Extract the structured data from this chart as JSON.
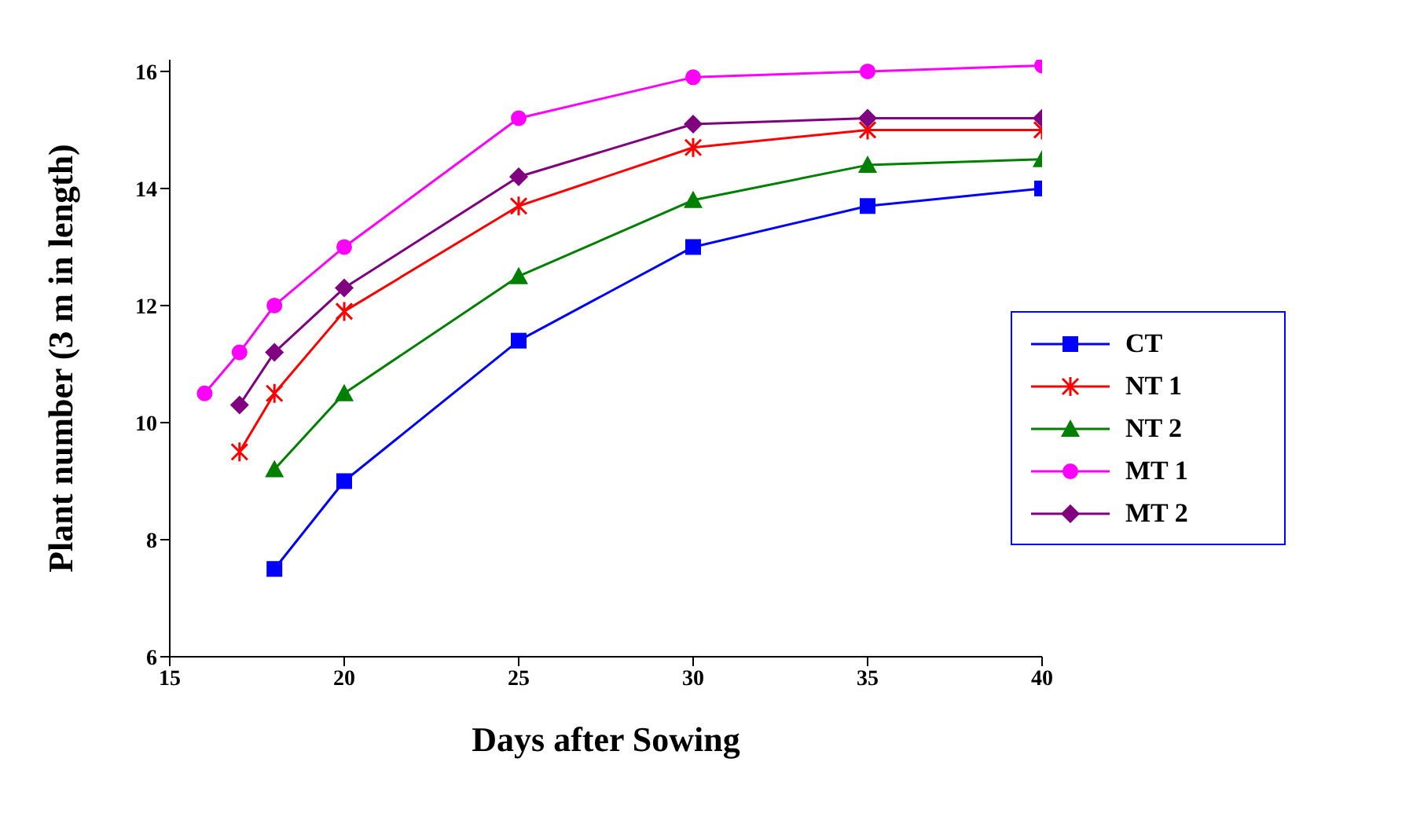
{
  "chart_data": {
    "type": "line",
    "xlabel": "Days after Sowing",
    "ylabel": "Plant number (3 m in length)",
    "xlim": [
      15,
      40
    ],
    "xticks": [
      15,
      20,
      25,
      30,
      35,
      40
    ],
    "ylim": [
      6,
      16.2
    ],
    "yticks": [
      6,
      8,
      10,
      12,
      14,
      16
    ],
    "grid": false,
    "legend": "right",
    "line_style": "solid",
    "series": [
      {
        "name": "CT",
        "color": "#0000ff",
        "marker": "square",
        "x": [
          18,
          20,
          25,
          30,
          35,
          40
        ],
        "values": [
          7.5,
          9,
          11.4,
          13,
          13.7,
          14
        ]
      },
      {
        "name": "NT 1",
        "color": "#ff0000",
        "marker": "cross",
        "x": [
          17,
          18,
          20,
          25,
          30,
          35,
          40
        ],
        "values": [
          9.5,
          10.5,
          11.9,
          13.7,
          14.7,
          15,
          15
        ]
      },
      {
        "name": "NT 2",
        "color": "#008000",
        "marker": "triangle",
        "x": [
          18,
          20,
          25,
          30,
          35,
          40
        ],
        "values": [
          9.2,
          10.5,
          12.5,
          13.8,
          14.4,
          14.5
        ]
      },
      {
        "name": "MT 1",
        "color": "#ff00ff",
        "marker": "circle",
        "x": [
          16,
          17,
          18,
          20,
          25,
          30,
          35,
          40
        ],
        "values": [
          10.5,
          11.2,
          12,
          13,
          15.2,
          15.9,
          16,
          16.1
        ]
      },
      {
        "name": "MT 2",
        "color": "#800080",
        "marker": "diamond",
        "x": [
          17,
          18,
          20,
          25,
          30,
          35,
          40
        ],
        "values": [
          10.3,
          11.2,
          12.3,
          14.2,
          15.1,
          15.2,
          15.2
        ]
      }
    ]
  }
}
